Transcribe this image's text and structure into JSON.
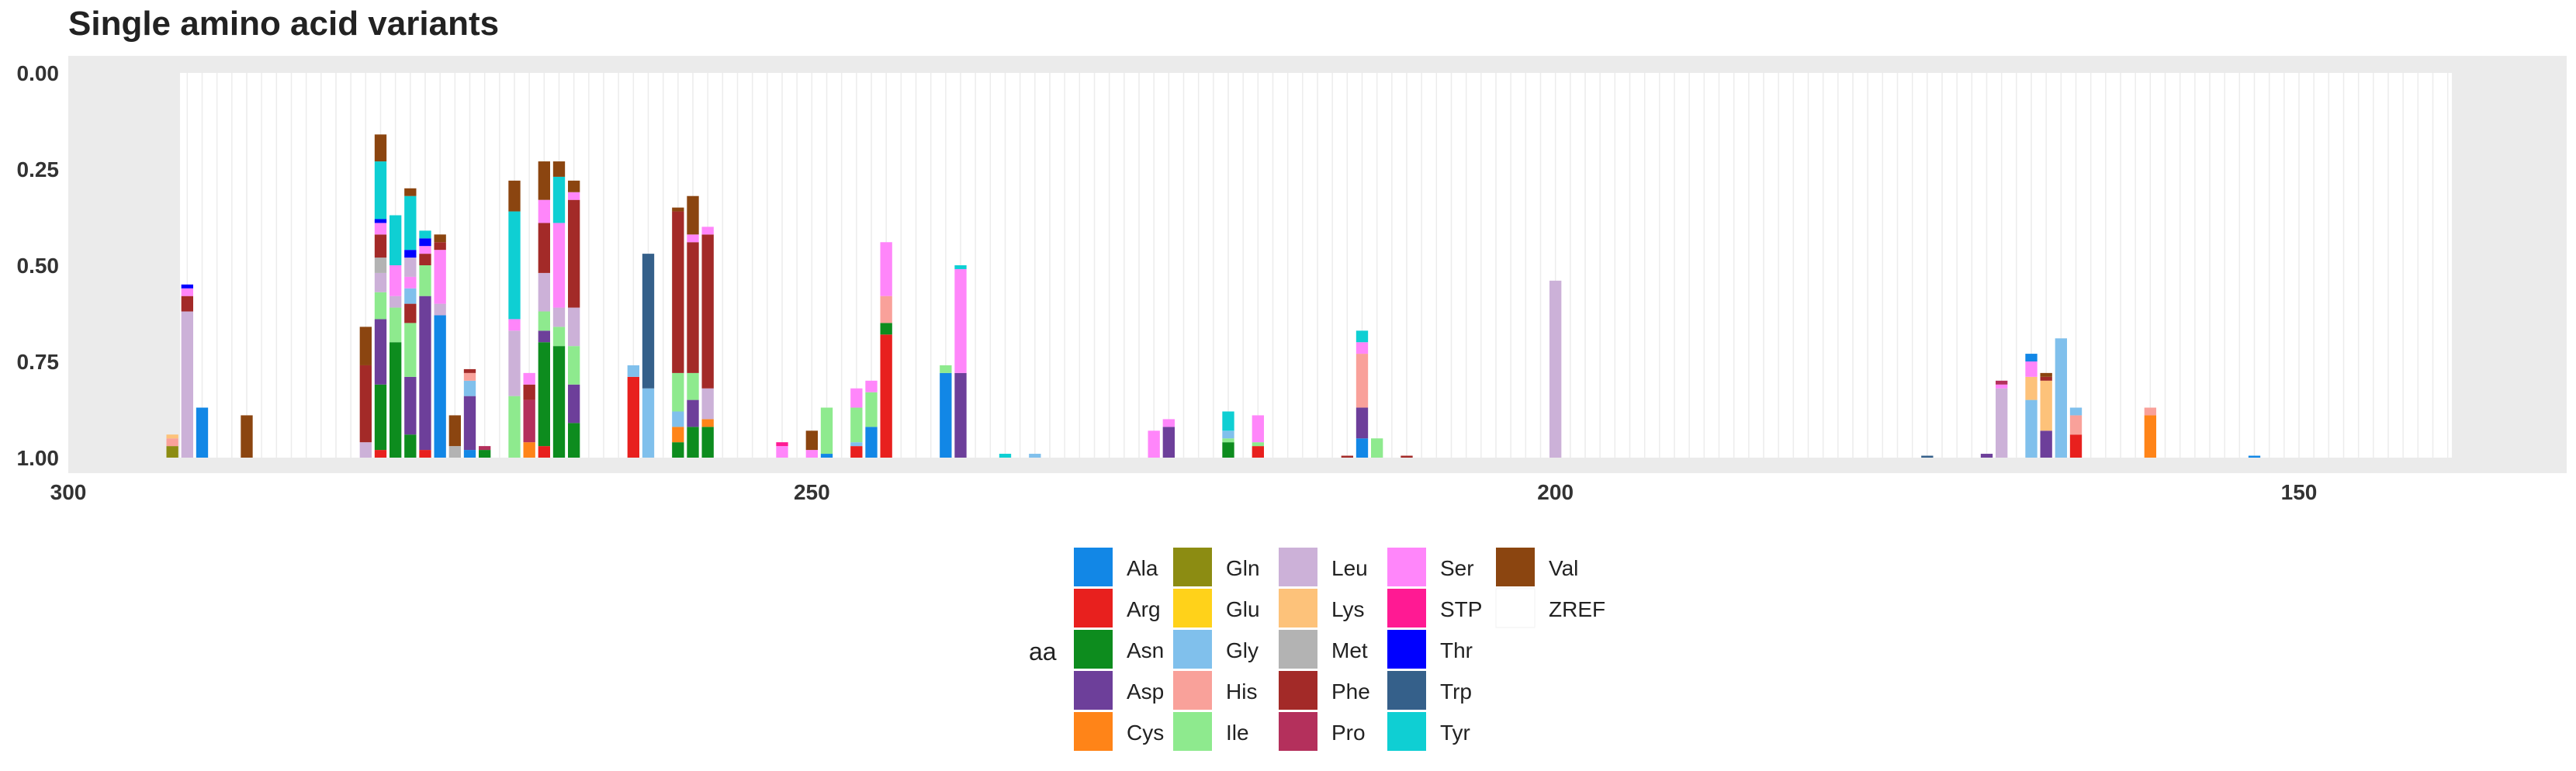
{
  "chart_data": {
    "type": "bar",
    "title": "Single amino acid variants",
    "xlabel": "",
    "ylabel": "",
    "x_reversed": true,
    "xlim": [
      300,
      132
    ],
    "ylim": [
      0,
      1
    ],
    "y_reversed": true,
    "x_ticks": [
      300,
      250,
      200,
      150
    ],
    "y_ticks": [
      0.0,
      0.25,
      0.5,
      0.75,
      1.0
    ],
    "y_tick_labels": [
      "0.00",
      "0.25",
      "0.50",
      "0.75",
      "1.00"
    ],
    "grid": true,
    "bar_width": 0.8,
    "legend_title": "aa",
    "legend_position": "bottom",
    "legend": [
      {
        "name": "Ala",
        "color": "#1287e6"
      },
      {
        "name": "Arg",
        "color": "#e8201e"
      },
      {
        "name": "Asn",
        "color": "#0d8c1e"
      },
      {
        "name": "Asp",
        "color": "#6d3f9a"
      },
      {
        "name": "Cys",
        "color": "#ff8418"
      },
      {
        "name": "Gln",
        "color": "#8c8c12"
      },
      {
        "name": "Glu",
        "color": "#ffd21a"
      },
      {
        "name": "Gly",
        "color": "#80c0ec"
      },
      {
        "name": "His",
        "color": "#f9a19a"
      },
      {
        "name": "Ile",
        "color": "#8eea8e"
      },
      {
        "name": "Leu",
        "color": "#ccb1d8"
      },
      {
        "name": "Lys",
        "color": "#fdc27a"
      },
      {
        "name": "Met",
        "color": "#b3b3b3"
      },
      {
        "name": "Phe",
        "color": "#a32a28"
      },
      {
        "name": "Pro",
        "color": "#b4305c"
      },
      {
        "name": "Ser",
        "color": "#ff86fa"
      },
      {
        "name": "STP",
        "color": "#ff1a93"
      },
      {
        "name": "Thr",
        "color": "#0000ff"
      },
      {
        "name": "Trp",
        "color": "#35608a"
      },
      {
        "name": "Tyr",
        "color": "#0fcfd3"
      },
      {
        "name": "Val",
        "color": "#8b4510"
      },
      {
        "name": "ZREF",
        "color": "#ffffff"
      }
    ],
    "bars": [
      {
        "x": 293,
        "segments": [
          {
            "aa": "Gln",
            "value": 0.03
          },
          {
            "aa": "His",
            "value": 0.02
          },
          {
            "aa": "Lys",
            "value": 0.01
          }
        ]
      },
      {
        "x": 292,
        "segments": [
          {
            "aa": "Leu",
            "value": 0.38
          },
          {
            "aa": "Phe",
            "value": 0.04
          },
          {
            "aa": "Ser",
            "value": 0.02
          },
          {
            "aa": "Thr",
            "value": 0.01
          }
        ]
      },
      {
        "x": 291,
        "segments": [
          {
            "aa": "Ala",
            "value": 0.13
          }
        ]
      },
      {
        "x": 288,
        "segments": [
          {
            "aa": "Val",
            "value": 0.11
          }
        ]
      },
      {
        "x": 280,
        "segments": [
          {
            "aa": "Leu",
            "value": 0.04
          },
          {
            "aa": "Phe",
            "value": 0.2
          },
          {
            "aa": "Val",
            "value": 0.1
          }
        ]
      },
      {
        "x": 279,
        "segments": [
          {
            "aa": "Arg",
            "value": 0.02
          },
          {
            "aa": "Asn",
            "value": 0.17
          },
          {
            "aa": "Asp",
            "value": 0.17
          },
          {
            "aa": "Ile",
            "value": 0.07
          },
          {
            "aa": "Leu",
            "value": 0.05
          },
          {
            "aa": "Met",
            "value": 0.04
          },
          {
            "aa": "Phe",
            "value": 0.06
          },
          {
            "aa": "Ser",
            "value": 0.03
          },
          {
            "aa": "Thr",
            "value": 0.01
          },
          {
            "aa": "Tyr",
            "value": 0.15
          },
          {
            "aa": "Val",
            "value": 0.07
          }
        ]
      },
      {
        "x": 278,
        "segments": [
          {
            "aa": "Asn",
            "value": 0.3
          },
          {
            "aa": "Ile",
            "value": 0.09
          },
          {
            "aa": "Leu",
            "value": 0.03
          },
          {
            "aa": "Ser",
            "value": 0.08
          },
          {
            "aa": "Tyr",
            "value": 0.13
          }
        ]
      },
      {
        "x": 277,
        "segments": [
          {
            "aa": "Asn",
            "value": 0.06
          },
          {
            "aa": "Asp",
            "value": 0.15
          },
          {
            "aa": "Ile",
            "value": 0.14
          },
          {
            "aa": "Phe",
            "value": 0.05
          },
          {
            "aa": "Gly",
            "value": 0.04
          },
          {
            "aa": "Ser",
            "value": 0.03
          },
          {
            "aa": "Leu",
            "value": 0.05
          },
          {
            "aa": "Thr",
            "value": 0.02
          },
          {
            "aa": "Tyr",
            "value": 0.14
          },
          {
            "aa": "Val",
            "value": 0.02
          }
        ]
      },
      {
        "x": 276,
        "segments": [
          {
            "aa": "Arg",
            "value": 0.02
          },
          {
            "aa": "Asp",
            "value": 0.4
          },
          {
            "aa": "Ile",
            "value": 0.08
          },
          {
            "aa": "Phe",
            "value": 0.03
          },
          {
            "aa": "Ser",
            "value": 0.02
          },
          {
            "aa": "Thr",
            "value": 0.02
          },
          {
            "aa": "Tyr",
            "value": 0.02
          }
        ]
      },
      {
        "x": 275,
        "segments": [
          {
            "aa": "Ala",
            "value": 0.37
          },
          {
            "aa": "Leu",
            "value": 0.03
          },
          {
            "aa": "Ser",
            "value": 0.14
          },
          {
            "aa": "Phe",
            "value": 0.02
          },
          {
            "aa": "Val",
            "value": 0.02
          }
        ]
      },
      {
        "x": 274,
        "segments": [
          {
            "aa": "Met",
            "value": 0.03
          },
          {
            "aa": "Val",
            "value": 0.08
          }
        ]
      },
      {
        "x": 273,
        "segments": [
          {
            "aa": "Ala",
            "value": 0.02
          },
          {
            "aa": "Asp",
            "value": 0.14
          },
          {
            "aa": "Gly",
            "value": 0.04
          },
          {
            "aa": "His",
            "value": 0.02
          },
          {
            "aa": "Phe",
            "value": 0.01
          }
        ]
      },
      {
        "x": 272,
        "segments": [
          {
            "aa": "Asn",
            "value": 0.02
          },
          {
            "aa": "Pro",
            "value": 0.01
          }
        ]
      },
      {
        "x": 270,
        "segments": [
          {
            "aa": "Ile",
            "value": 0.16
          },
          {
            "aa": "Leu",
            "value": 0.17
          },
          {
            "aa": "Ser",
            "value": 0.03
          },
          {
            "aa": "Tyr",
            "value": 0.28
          },
          {
            "aa": "Val",
            "value": 0.08
          }
        ]
      },
      {
        "x": 269,
        "segments": [
          {
            "aa": "Cys",
            "value": 0.04
          },
          {
            "aa": "Pro",
            "value": 0.11
          },
          {
            "aa": "Phe",
            "value": 0.04
          },
          {
            "aa": "Ser",
            "value": 0.03
          }
        ]
      },
      {
        "x": 268,
        "segments": [
          {
            "aa": "Arg",
            "value": 0.03
          },
          {
            "aa": "Asn",
            "value": 0.27
          },
          {
            "aa": "Asp",
            "value": 0.03
          },
          {
            "aa": "Ile",
            "value": 0.05
          },
          {
            "aa": "Leu",
            "value": 0.1
          },
          {
            "aa": "Phe",
            "value": 0.13
          },
          {
            "aa": "Ser",
            "value": 0.06
          },
          {
            "aa": "Val",
            "value": 0.1
          }
        ]
      },
      {
        "x": 267,
        "segments": [
          {
            "aa": "Asn",
            "value": 0.29
          },
          {
            "aa": "Ile",
            "value": 0.05
          },
          {
            "aa": "Leu",
            "value": 0.05
          },
          {
            "aa": "Ser",
            "value": 0.22
          },
          {
            "aa": "Tyr",
            "value": 0.12
          },
          {
            "aa": "Val",
            "value": 0.04
          }
        ]
      },
      {
        "x": 266,
        "segments": [
          {
            "aa": "Asn",
            "value": 0.09
          },
          {
            "aa": "Asp",
            "value": 0.1
          },
          {
            "aa": "Ile",
            "value": 0.1
          },
          {
            "aa": "Leu",
            "value": 0.1
          },
          {
            "aa": "Phe",
            "value": 0.28
          },
          {
            "aa": "Ser",
            "value": 0.02
          },
          {
            "aa": "Val",
            "value": 0.03
          }
        ]
      },
      {
        "x": 262,
        "segments": [
          {
            "aa": "Arg",
            "value": 0.21
          },
          {
            "aa": "Gly",
            "value": 0.03
          }
        ]
      },
      {
        "x": 261,
        "segments": [
          {
            "aa": "Gly",
            "value": 0.18
          },
          {
            "aa": "Trp",
            "value": 0.35
          }
        ]
      },
      {
        "x": 259,
        "segments": [
          {
            "aa": "Asn",
            "value": 0.04
          },
          {
            "aa": "Cys",
            "value": 0.04
          },
          {
            "aa": "Gly",
            "value": 0.04
          },
          {
            "aa": "Ile",
            "value": 0.1
          },
          {
            "aa": "Phe",
            "value": 0.42
          },
          {
            "aa": "Val",
            "value": 0.01
          }
        ]
      },
      {
        "x": 258,
        "segments": [
          {
            "aa": "Asn",
            "value": 0.08
          },
          {
            "aa": "Asp",
            "value": 0.07
          },
          {
            "aa": "Ile",
            "value": 0.07
          },
          {
            "aa": "Phe",
            "value": 0.34
          },
          {
            "aa": "Ser",
            "value": 0.02
          },
          {
            "aa": "Val",
            "value": 0.1
          }
        ]
      },
      {
        "x": 257,
        "segments": [
          {
            "aa": "Asn",
            "value": 0.08
          },
          {
            "aa": "Cys",
            "value": 0.02
          },
          {
            "aa": "Leu",
            "value": 0.08
          },
          {
            "aa": "Phe",
            "value": 0.4
          },
          {
            "aa": "Ser",
            "value": 0.02
          }
        ]
      },
      {
        "x": 252,
        "segments": [
          {
            "aa": "Ser",
            "value": 0.03
          },
          {
            "aa": "STP",
            "value": 0.01
          }
        ]
      },
      {
        "x": 250,
        "segments": [
          {
            "aa": "Ser",
            "value": 0.02
          },
          {
            "aa": "Val",
            "value": 0.05
          }
        ]
      },
      {
        "x": 249,
        "segments": [
          {
            "aa": "Ala",
            "value": 0.01
          },
          {
            "aa": "Ile",
            "value": 0.12
          }
        ]
      },
      {
        "x": 247,
        "segments": [
          {
            "aa": "Arg",
            "value": 0.03
          },
          {
            "aa": "Gly",
            "value": 0.01
          },
          {
            "aa": "Ile",
            "value": 0.09
          },
          {
            "aa": "Ser",
            "value": 0.05
          }
        ]
      },
      {
        "x": 246,
        "segments": [
          {
            "aa": "Ala",
            "value": 0.08
          },
          {
            "aa": "Ile",
            "value": 0.09
          },
          {
            "aa": "Ser",
            "value": 0.03
          }
        ]
      },
      {
        "x": 245,
        "segments": [
          {
            "aa": "Arg",
            "value": 0.32
          },
          {
            "aa": "Asn",
            "value": 0.03
          },
          {
            "aa": "His",
            "value": 0.07
          },
          {
            "aa": "Ser",
            "value": 0.14
          }
        ]
      },
      {
        "x": 241,
        "segments": [
          {
            "aa": "Ala",
            "value": 0.22
          },
          {
            "aa": "Ile",
            "value": 0.02
          }
        ]
      },
      {
        "x": 240,
        "segments": [
          {
            "aa": "Asp",
            "value": 0.22
          },
          {
            "aa": "Ser",
            "value": 0.27
          },
          {
            "aa": "Tyr",
            "value": 0.01
          }
        ]
      },
      {
        "x": 237,
        "segments": [
          {
            "aa": "Tyr",
            "value": 0.01
          }
        ]
      },
      {
        "x": 235,
        "segments": [
          {
            "aa": "Gly",
            "value": 0.01
          }
        ]
      },
      {
        "x": 227,
        "segments": [
          {
            "aa": "Ser",
            "value": 0.07
          }
        ]
      },
      {
        "x": 226,
        "segments": [
          {
            "aa": "Asp",
            "value": 0.08
          },
          {
            "aa": "Ser",
            "value": 0.02
          }
        ]
      },
      {
        "x": 222,
        "segments": [
          {
            "aa": "Asn",
            "value": 0.04
          },
          {
            "aa": "Ile",
            "value": 0.01
          },
          {
            "aa": "Gly",
            "value": 0.02
          },
          {
            "aa": "Tyr",
            "value": 0.05
          }
        ]
      },
      {
        "x": 220,
        "segments": [
          {
            "aa": "Arg",
            "value": 0.03
          },
          {
            "aa": "Ile",
            "value": 0.01
          },
          {
            "aa": "Ser",
            "value": 0.07
          }
        ]
      },
      {
        "x": 214,
        "segments": [
          {
            "aa": "Phe",
            "value": 0.005
          }
        ]
      },
      {
        "x": 213,
        "segments": [
          {
            "aa": "Ala",
            "value": 0.05
          },
          {
            "aa": "Asp",
            "value": 0.08
          },
          {
            "aa": "His",
            "value": 0.14
          },
          {
            "aa": "Ser",
            "value": 0.03
          },
          {
            "aa": "Tyr",
            "value": 0.03
          }
        ]
      },
      {
        "x": 212,
        "segments": [
          {
            "aa": "Ile",
            "value": 0.05
          }
        ]
      },
      {
        "x": 210,
        "segments": [
          {
            "aa": "Phe",
            "value": 0.005
          }
        ]
      },
      {
        "x": 200,
        "segments": [
          {
            "aa": "Leu",
            "value": 0.46
          }
        ]
      },
      {
        "x": 175,
        "segments": [
          {
            "aa": "Trp",
            "value": 0.005
          }
        ]
      },
      {
        "x": 171,
        "segments": [
          {
            "aa": "Asp",
            "value": 0.01
          }
        ]
      },
      {
        "x": 170,
        "segments": [
          {
            "aa": "Leu",
            "value": 0.18
          },
          {
            "aa": "Ser",
            "value": 0.01
          },
          {
            "aa": "Pro",
            "value": 0.01
          }
        ]
      },
      {
        "x": 168,
        "segments": [
          {
            "aa": "Gly",
            "value": 0.15
          },
          {
            "aa": "Lys",
            "value": 0.06
          },
          {
            "aa": "Ser",
            "value": 0.04
          },
          {
            "aa": "Ala",
            "value": 0.02
          }
        ]
      },
      {
        "x": 167,
        "segments": [
          {
            "aa": "Asp",
            "value": 0.07
          },
          {
            "aa": "Lys",
            "value": 0.13
          },
          {
            "aa": "Phe",
            "value": 0.01
          },
          {
            "aa": "Val",
            "value": 0.01
          }
        ]
      },
      {
        "x": 166,
        "segments": [
          {
            "aa": "Gly",
            "value": 0.31
          }
        ]
      },
      {
        "x": 165,
        "segments": [
          {
            "aa": "Arg",
            "value": 0.06
          },
          {
            "aa": "His",
            "value": 0.05
          },
          {
            "aa": "Gly",
            "value": 0.02
          }
        ]
      },
      {
        "x": 160,
        "segments": [
          {
            "aa": "Cys",
            "value": 0.11
          },
          {
            "aa": "His",
            "value": 0.02
          }
        ]
      },
      {
        "x": 153,
        "segments": [
          {
            "aa": "Ala",
            "value": 0.005
          }
        ]
      }
    ]
  }
}
